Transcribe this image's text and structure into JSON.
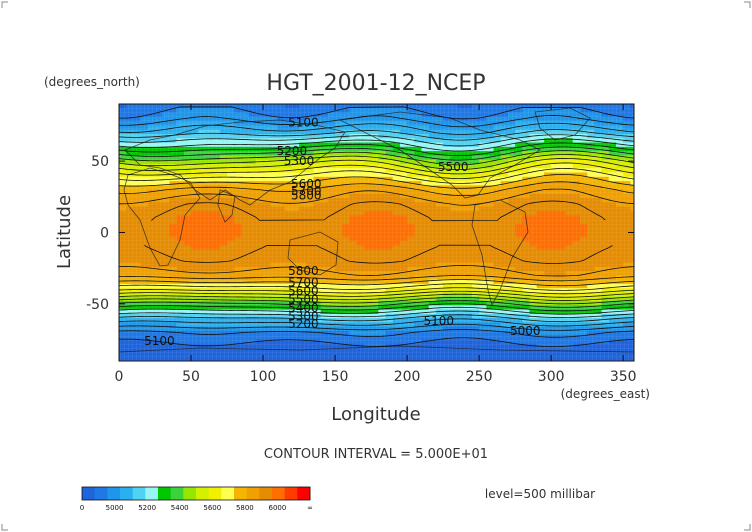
{
  "chart_data": {
    "type": "heatmap",
    "title": "HGT_2001-12_NCEP",
    "xlabel": "Longitude",
    "ylabel": "Latitude",
    "x_units": "(degrees_east)",
    "y_units": "(degrees_north)",
    "xlim": [
      0,
      357.5
    ],
    "ylim": [
      -90,
      90
    ],
    "x_ticks": [
      0,
      50,
      100,
      150,
      200,
      250,
      300,
      350
    ],
    "y_ticks": [
      50,
      0,
      -50
    ],
    "contour_interval_text": "CONTOUR INTERVAL = 5.000E+01",
    "level_text": "level=500 millibar",
    "zonal_profile_lat": [
      90,
      80,
      70,
      60,
      50,
      40,
      30,
      20,
      10,
      0,
      -10,
      -20,
      -30,
      -40,
      -50,
      -60,
      -70,
      -80,
      -90
    ],
    "zonal_profile_hgt": [
      5020,
      5080,
      5180,
      5330,
      5500,
      5640,
      5760,
      5830,
      5860,
      5870,
      5860,
      5840,
      5780,
      5620,
      5400,
      5200,
      5050,
      4980,
      4960
    ],
    "contour_labels": [
      {
        "text": "5100",
        "lon": 128,
        "lat": 77
      },
      {
        "text": "5200",
        "lon": 120,
        "lat": 57
      },
      {
        "text": "5300",
        "lon": 125,
        "lat": 50
      },
      {
        "text": "5500",
        "lon": 232,
        "lat": 46
      },
      {
        "text": "5600",
        "lon": 130,
        "lat": 34
      },
      {
        "text": "5700",
        "lon": 130,
        "lat": 29
      },
      {
        "text": "5800",
        "lon": 130,
        "lat": 26
      },
      {
        "text": "5800",
        "lon": 128,
        "lat": -27
      },
      {
        "text": "5700",
        "lon": 128,
        "lat": -35
      },
      {
        "text": "5600",
        "lon": 128,
        "lat": -41
      },
      {
        "text": "5500",
        "lon": 128,
        "lat": -47
      },
      {
        "text": "5400",
        "lon": 128,
        "lat": -53
      },
      {
        "text": "5300",
        "lon": 128,
        "lat": -59
      },
      {
        "text": "5200",
        "lon": 128,
        "lat": -64
      },
      {
        "text": "5100",
        "lon": 222,
        "lat": -62
      },
      {
        "text": "5000",
        "lon": 282,
        "lat": -69
      },
      {
        "text": "5100",
        "lon": 28,
        "lat": -76
      }
    ],
    "colorbar": {
      "ticks": [
        "0",
        "5000",
        "5200",
        "5400",
        "5600",
        "5800",
        "6000",
        "∞"
      ],
      "colors": [
        "#1e64dc",
        "#1e78e6",
        "#1e96eb",
        "#2ab0f0",
        "#50d2f2",
        "#96f5f5",
        "#00c800",
        "#3cd23c",
        "#96e600",
        "#d2f000",
        "#f0f000",
        "#ffff50",
        "#f5b400",
        "#f0a000",
        "#e68c00",
        "#ff6e00",
        "#ff3c00",
        "#ff0000"
      ]
    },
    "grid": true
  }
}
